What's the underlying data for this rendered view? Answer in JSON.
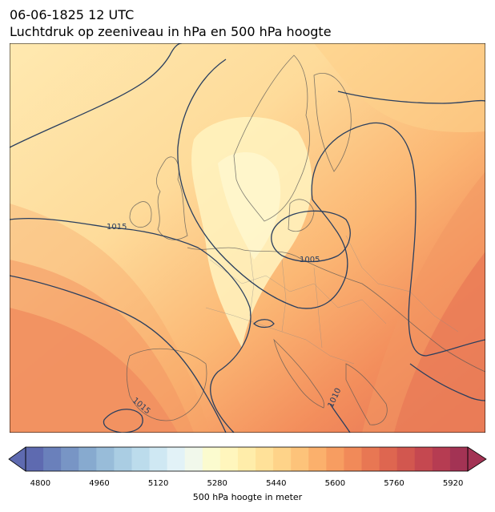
{
  "title": {
    "line1": "06-06-1825 12 UTC",
    "line2": "Luchtdruk op zeeniveau in hPa en 500 hPa hoogte"
  },
  "map": {
    "region": "Europe",
    "isobar_labels": [
      "1015",
      "1005",
      "1015",
      "1010"
    ],
    "isobar_color": "#2a3f5f",
    "border_color": "#666666"
  },
  "colorbar": {
    "label": "500 hPa hoogte in meter",
    "ticks": [
      "4800",
      "4960",
      "5120",
      "5280",
      "5440",
      "5600",
      "5760",
      "5920"
    ],
    "min": 4760,
    "max": 5960,
    "step": 40,
    "extend": "both",
    "colors": [
      "#5e6ab0",
      "#6a80bb",
      "#7895c5",
      "#87aacf",
      "#98bcd9",
      "#aacde3",
      "#bcdcec",
      "#cfe8f3",
      "#e2f2f7",
      "#f1f8eb",
      "#fbfbcf",
      "#fff6bd",
      "#ffedaa",
      "#ffe199",
      "#fed389",
      "#fdc37a",
      "#fbb06c",
      "#f79d61",
      "#f18a59",
      "#e87753",
      "#de6650",
      "#d2574f",
      "#c54850",
      "#b63c52",
      "#a33354"
    ]
  }
}
